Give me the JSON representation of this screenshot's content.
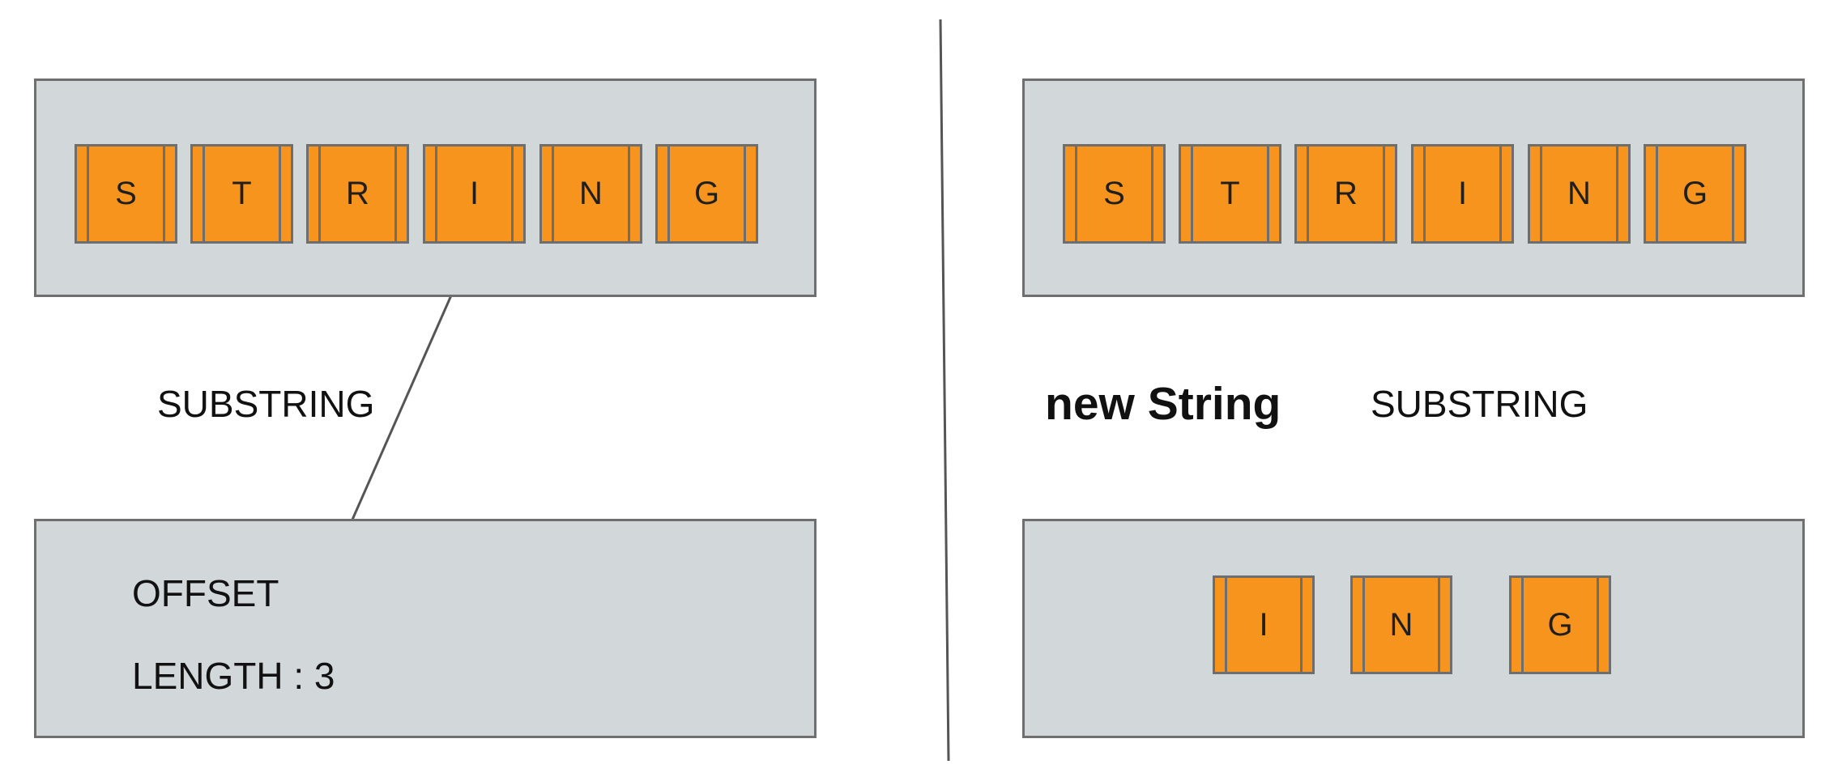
{
  "left": {
    "source_letters": [
      "S",
      "T",
      "R",
      "I",
      "N",
      "G"
    ],
    "substring_label": "SUBSTRING",
    "offset_label": "OFFSET",
    "length_label": "LENGTH : 3"
  },
  "right": {
    "source_letters": [
      "S",
      "T",
      "R",
      "I",
      "N",
      "G"
    ],
    "new_string_label": "new String",
    "substring_label": "SUBSTRING",
    "result_letters": [
      "I",
      "N",
      "G"
    ]
  },
  "colors": {
    "panel_fill": "#d2d7d9",
    "panel_border": "#6f6f6f",
    "cell_fill": "#f7941d",
    "cell_border": "#6e6e6e",
    "arrow": "#555555",
    "divider": "#555555"
  }
}
